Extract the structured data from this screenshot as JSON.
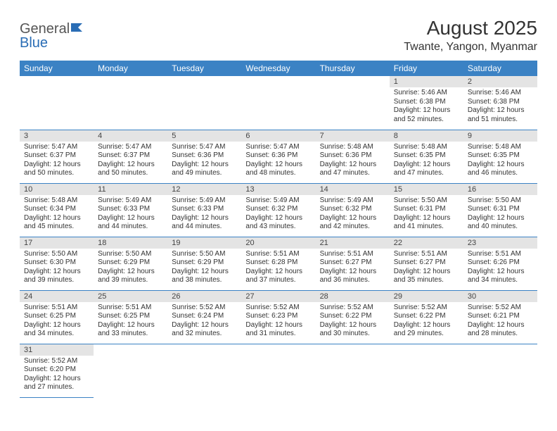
{
  "logo": {
    "text1": "General",
    "text2": "Blue"
  },
  "title": "August 2025",
  "location": "Twante, Yangon, Myanmar",
  "colors": {
    "header_bg": "#3b82c4",
    "header_text": "#ffffff",
    "daynum_bg": "#e4e4e4",
    "cell_border": "#3b82c4",
    "logo_blue": "#2a6db5",
    "body_text": "#333333",
    "background": "#ffffff"
  },
  "fonts": {
    "title_size": 28,
    "location_size": 16,
    "header_size": 12,
    "daynum_size": 11,
    "body_size": 10
  },
  "weekdays": [
    "Sunday",
    "Monday",
    "Tuesday",
    "Wednesday",
    "Thursday",
    "Friday",
    "Saturday"
  ],
  "weeks": [
    [
      null,
      null,
      null,
      null,
      null,
      {
        "n": "1",
        "sr": "5:46 AM",
        "ss": "6:38 PM",
        "dl": "12 hours and 52 minutes."
      },
      {
        "n": "2",
        "sr": "5:46 AM",
        "ss": "6:38 PM",
        "dl": "12 hours and 51 minutes."
      }
    ],
    [
      {
        "n": "3",
        "sr": "5:47 AM",
        "ss": "6:37 PM",
        "dl": "12 hours and 50 minutes."
      },
      {
        "n": "4",
        "sr": "5:47 AM",
        "ss": "6:37 PM",
        "dl": "12 hours and 50 minutes."
      },
      {
        "n": "5",
        "sr": "5:47 AM",
        "ss": "6:36 PM",
        "dl": "12 hours and 49 minutes."
      },
      {
        "n": "6",
        "sr": "5:47 AM",
        "ss": "6:36 PM",
        "dl": "12 hours and 48 minutes."
      },
      {
        "n": "7",
        "sr": "5:48 AM",
        "ss": "6:36 PM",
        "dl": "12 hours and 47 minutes."
      },
      {
        "n": "8",
        "sr": "5:48 AM",
        "ss": "6:35 PM",
        "dl": "12 hours and 47 minutes."
      },
      {
        "n": "9",
        "sr": "5:48 AM",
        "ss": "6:35 PM",
        "dl": "12 hours and 46 minutes."
      }
    ],
    [
      {
        "n": "10",
        "sr": "5:48 AM",
        "ss": "6:34 PM",
        "dl": "12 hours and 45 minutes."
      },
      {
        "n": "11",
        "sr": "5:49 AM",
        "ss": "6:33 PM",
        "dl": "12 hours and 44 minutes."
      },
      {
        "n": "12",
        "sr": "5:49 AM",
        "ss": "6:33 PM",
        "dl": "12 hours and 44 minutes."
      },
      {
        "n": "13",
        "sr": "5:49 AM",
        "ss": "6:32 PM",
        "dl": "12 hours and 43 minutes."
      },
      {
        "n": "14",
        "sr": "5:49 AM",
        "ss": "6:32 PM",
        "dl": "12 hours and 42 minutes."
      },
      {
        "n": "15",
        "sr": "5:50 AM",
        "ss": "6:31 PM",
        "dl": "12 hours and 41 minutes."
      },
      {
        "n": "16",
        "sr": "5:50 AM",
        "ss": "6:31 PM",
        "dl": "12 hours and 40 minutes."
      }
    ],
    [
      {
        "n": "17",
        "sr": "5:50 AM",
        "ss": "6:30 PM",
        "dl": "12 hours and 39 minutes."
      },
      {
        "n": "18",
        "sr": "5:50 AM",
        "ss": "6:29 PM",
        "dl": "12 hours and 39 minutes."
      },
      {
        "n": "19",
        "sr": "5:50 AM",
        "ss": "6:29 PM",
        "dl": "12 hours and 38 minutes."
      },
      {
        "n": "20",
        "sr": "5:51 AM",
        "ss": "6:28 PM",
        "dl": "12 hours and 37 minutes."
      },
      {
        "n": "21",
        "sr": "5:51 AM",
        "ss": "6:27 PM",
        "dl": "12 hours and 36 minutes."
      },
      {
        "n": "22",
        "sr": "5:51 AM",
        "ss": "6:27 PM",
        "dl": "12 hours and 35 minutes."
      },
      {
        "n": "23",
        "sr": "5:51 AM",
        "ss": "6:26 PM",
        "dl": "12 hours and 34 minutes."
      }
    ],
    [
      {
        "n": "24",
        "sr": "5:51 AM",
        "ss": "6:25 PM",
        "dl": "12 hours and 34 minutes."
      },
      {
        "n": "25",
        "sr": "5:51 AM",
        "ss": "6:25 PM",
        "dl": "12 hours and 33 minutes."
      },
      {
        "n": "26",
        "sr": "5:52 AM",
        "ss": "6:24 PM",
        "dl": "12 hours and 32 minutes."
      },
      {
        "n": "27",
        "sr": "5:52 AM",
        "ss": "6:23 PM",
        "dl": "12 hours and 31 minutes."
      },
      {
        "n": "28",
        "sr": "5:52 AM",
        "ss": "6:22 PM",
        "dl": "12 hours and 30 minutes."
      },
      {
        "n": "29",
        "sr": "5:52 AM",
        "ss": "6:22 PM",
        "dl": "12 hours and 29 minutes."
      },
      {
        "n": "30",
        "sr": "5:52 AM",
        "ss": "6:21 PM",
        "dl": "12 hours and 28 minutes."
      }
    ],
    [
      {
        "n": "31",
        "sr": "5:52 AM",
        "ss": "6:20 PM",
        "dl": "12 hours and 27 minutes."
      },
      null,
      null,
      null,
      null,
      null,
      null
    ]
  ],
  "labels": {
    "sunrise": "Sunrise:",
    "sunset": "Sunset:",
    "daylight": "Daylight:"
  }
}
